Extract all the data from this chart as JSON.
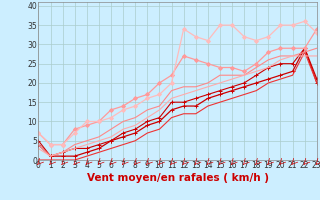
{
  "xlabel": "Vent moyen/en rafales ( km/h )",
  "background_color": "#cceeff",
  "grid_color": "#aacccc",
  "xlim": [
    0,
    23
  ],
  "ylim": [
    0,
    41
  ],
  "xticks": [
    0,
    1,
    2,
    3,
    4,
    5,
    6,
    7,
    8,
    9,
    10,
    11,
    12,
    13,
    14,
    15,
    16,
    17,
    18,
    19,
    20,
    21,
    22,
    23
  ],
  "yticks": [
    0,
    5,
    10,
    15,
    20,
    25,
    30,
    35,
    40
  ],
  "series": [
    {
      "x": [
        0,
        1,
        2,
        3,
        4,
        5,
        6,
        7,
        8,
        9,
        10,
        11,
        12,
        13,
        14,
        15,
        16,
        17,
        18,
        19,
        20,
        21,
        22,
        23
      ],
      "y": [
        4,
        1,
        1,
        1,
        2,
        3,
        5,
        6,
        7,
        9,
        10,
        13,
        14,
        14,
        16,
        17,
        18,
        19,
        20,
        21,
        22,
        23,
        29,
        21
      ],
      "color": "#cc0000",
      "lw": 0.9,
      "marker": "+",
      "ms": 2.5
    },
    {
      "x": [
        0,
        1,
        2,
        3,
        4,
        5,
        6,
        7,
        8,
        9,
        10,
        11,
        12,
        13,
        14,
        15,
        16,
        17,
        18,
        19,
        20,
        21,
        22,
        23
      ],
      "y": [
        5,
        1,
        2,
        3,
        3,
        4,
        5,
        7,
        8,
        10,
        11,
        15,
        15,
        16,
        17,
        18,
        19,
        20,
        22,
        24,
        25,
        25,
        29,
        20
      ],
      "color": "#cc0000",
      "lw": 0.8,
      "marker": "+",
      "ms": 2.5
    },
    {
      "x": [
        0,
        1,
        2,
        3,
        4,
        5,
        6,
        7,
        8,
        9,
        10,
        11,
        12,
        13,
        14,
        15,
        16,
        17,
        18,
        19,
        20,
        21,
        22,
        23
      ],
      "y": [
        0,
        0,
        0,
        0,
        1,
        2,
        3,
        4,
        5,
        7,
        8,
        11,
        12,
        12,
        14,
        15,
        16,
        17,
        18,
        20,
        21,
        22,
        28,
        20
      ],
      "color": "#ee3333",
      "lw": 0.8,
      "marker": null,
      "ms": 0
    },
    {
      "x": [
        0,
        1,
        2,
        3,
        4,
        5,
        6,
        7,
        8,
        9,
        10,
        11,
        12,
        13,
        14,
        15,
        16,
        17,
        18,
        19,
        20,
        21,
        22,
        23
      ],
      "y": [
        7,
        4,
        4,
        8,
        9,
        10,
        13,
        14,
        16,
        17,
        20,
        22,
        27,
        26,
        25,
        24,
        24,
        23,
        25,
        28,
        29,
        29,
        29,
        34
      ],
      "color": "#ff9999",
      "lw": 0.9,
      "marker": "D",
      "ms": 2.0
    },
    {
      "x": [
        0,
        1,
        2,
        3,
        4,
        5,
        6,
        7,
        8,
        9,
        10,
        11,
        12,
        13,
        14,
        15,
        16,
        17,
        18,
        19,
        20,
        21,
        22,
        23
      ],
      "y": [
        4,
        1,
        2,
        4,
        5,
        6,
        8,
        10,
        11,
        13,
        14,
        18,
        19,
        19,
        20,
        22,
        22,
        22,
        24,
        26,
        27,
        27,
        28,
        29
      ],
      "color": "#ff8888",
      "lw": 0.8,
      "marker": null,
      "ms": 0
    },
    {
      "x": [
        0,
        1,
        2,
        3,
        4,
        5,
        6,
        7,
        8,
        9,
        10,
        11,
        12,
        13,
        14,
        15,
        16,
        17,
        18,
        19,
        20,
        21,
        22,
        23
      ],
      "y": [
        3,
        1,
        2,
        3,
        4,
        5,
        6,
        8,
        9,
        11,
        13,
        16,
        17,
        18,
        19,
        20,
        21,
        22,
        23,
        24,
        26,
        27,
        27,
        27
      ],
      "color": "#ffaaaa",
      "lw": 0.8,
      "marker": null,
      "ms": 0
    },
    {
      "x": [
        0,
        1,
        2,
        3,
        4,
        5,
        6,
        7,
        8,
        9,
        10,
        11,
        12,
        13,
        14,
        15,
        16,
        17,
        18,
        19,
        20,
        21,
        22,
        23
      ],
      "y": [
        7,
        4,
        4,
        7,
        10,
        10,
        11,
        13,
        14,
        16,
        17,
        20,
        34,
        32,
        31,
        35,
        35,
        32,
        31,
        32,
        35,
        35,
        36,
        33
      ],
      "color": "#ffbbbb",
      "lw": 0.9,
      "marker": "D",
      "ms": 2.0
    }
  ],
  "xlabel_color": "#cc0000",
  "xlabel_fontsize": 7.5,
  "tick_fontsize": 5.5,
  "arrow_color": "#cc0000"
}
